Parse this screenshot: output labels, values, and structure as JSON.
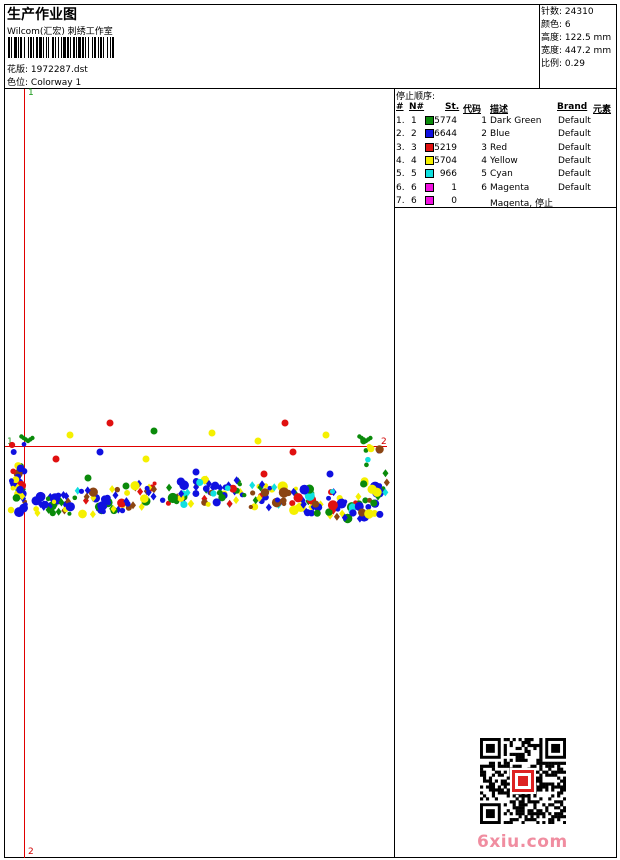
{
  "header": {
    "title": "生产作业图",
    "company": "Wilcom(汇宏) 刺绣工作室",
    "design_label": "花版:",
    "design_value": "1972287.dst",
    "colorway_label": "色位:",
    "colorway_value": "Colorway 1"
  },
  "stats": {
    "stitches_label": "针数:",
    "stitches_value": "24310",
    "colors_label": "颜色:",
    "colors_value": "6",
    "height_label": "高度:",
    "height_value": "122.5 mm",
    "width_label": "宽度:",
    "width_value": "447.2 mm",
    "scale_label": "比例:",
    "scale_value": "0.29"
  },
  "stop_sequence": {
    "title": "停止顺序:",
    "headers": {
      "num": "#",
      "n": "N#",
      "st": "St.",
      "code": "代码",
      "desc": "描述",
      "brand": "Brand",
      "element": "元素"
    },
    "rows": [
      {
        "num": "1.",
        "n": "1",
        "color": "#0a8a0a",
        "st": "5774",
        "code": "1",
        "desc": "Dark Green",
        "brand": "Default"
      },
      {
        "num": "2.",
        "n": "2",
        "color": "#1010e0",
        "st": "6644",
        "code": "2",
        "desc": "Blue",
        "brand": "Default"
      },
      {
        "num": "3.",
        "n": "3",
        "color": "#e01010",
        "st": "5219",
        "code": "3",
        "desc": "Red",
        "brand": "Default"
      },
      {
        "num": "4.",
        "n": "4",
        "color": "#f5f000",
        "st": "5704",
        "code": "4",
        "desc": "Yellow",
        "brand": "Default"
      },
      {
        "num": "5.",
        "n": "5",
        "color": "#10e0e0",
        "st": "966",
        "code": "5",
        "desc": "Cyan",
        "brand": "Default"
      },
      {
        "num": "6.",
        "n": "6",
        "color": "#f010e0",
        "st": "1",
        "code": "6",
        "desc": "Magenta",
        "brand": "Default"
      },
      {
        "num": "7.",
        "n": "6",
        "color": "#f010e0",
        "st": "0",
        "code": "",
        "desc": "Magenta, 停止",
        "brand": ""
      }
    ]
  },
  "canvas": {
    "marker_top": "1",
    "marker_bottom": "2",
    "marker_left": "1",
    "marker_right": "2"
  },
  "watermark": "6xiu.com"
}
